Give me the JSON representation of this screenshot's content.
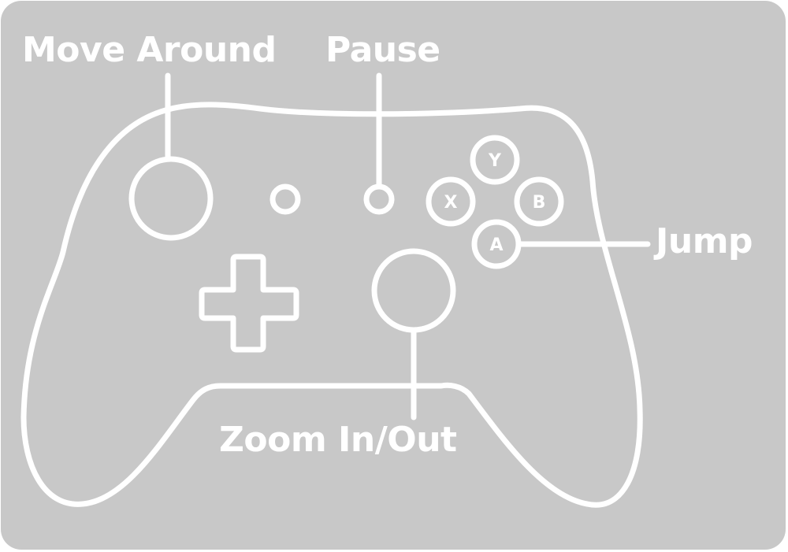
{
  "colors": {
    "background": "#c8c8c8",
    "stroke": "#ffffff"
  },
  "labels": {
    "move_around": "Move Around",
    "pause": "Pause",
    "jump": "Jump",
    "zoom": "Zoom In/Out"
  },
  "buttons": {
    "y": "Y",
    "x": "X",
    "b": "B",
    "a": "A"
  },
  "icons": {
    "controller": "gamepad-outline",
    "left_stick": "circle",
    "right_stick": "circle",
    "dpad": "plus-shape"
  }
}
